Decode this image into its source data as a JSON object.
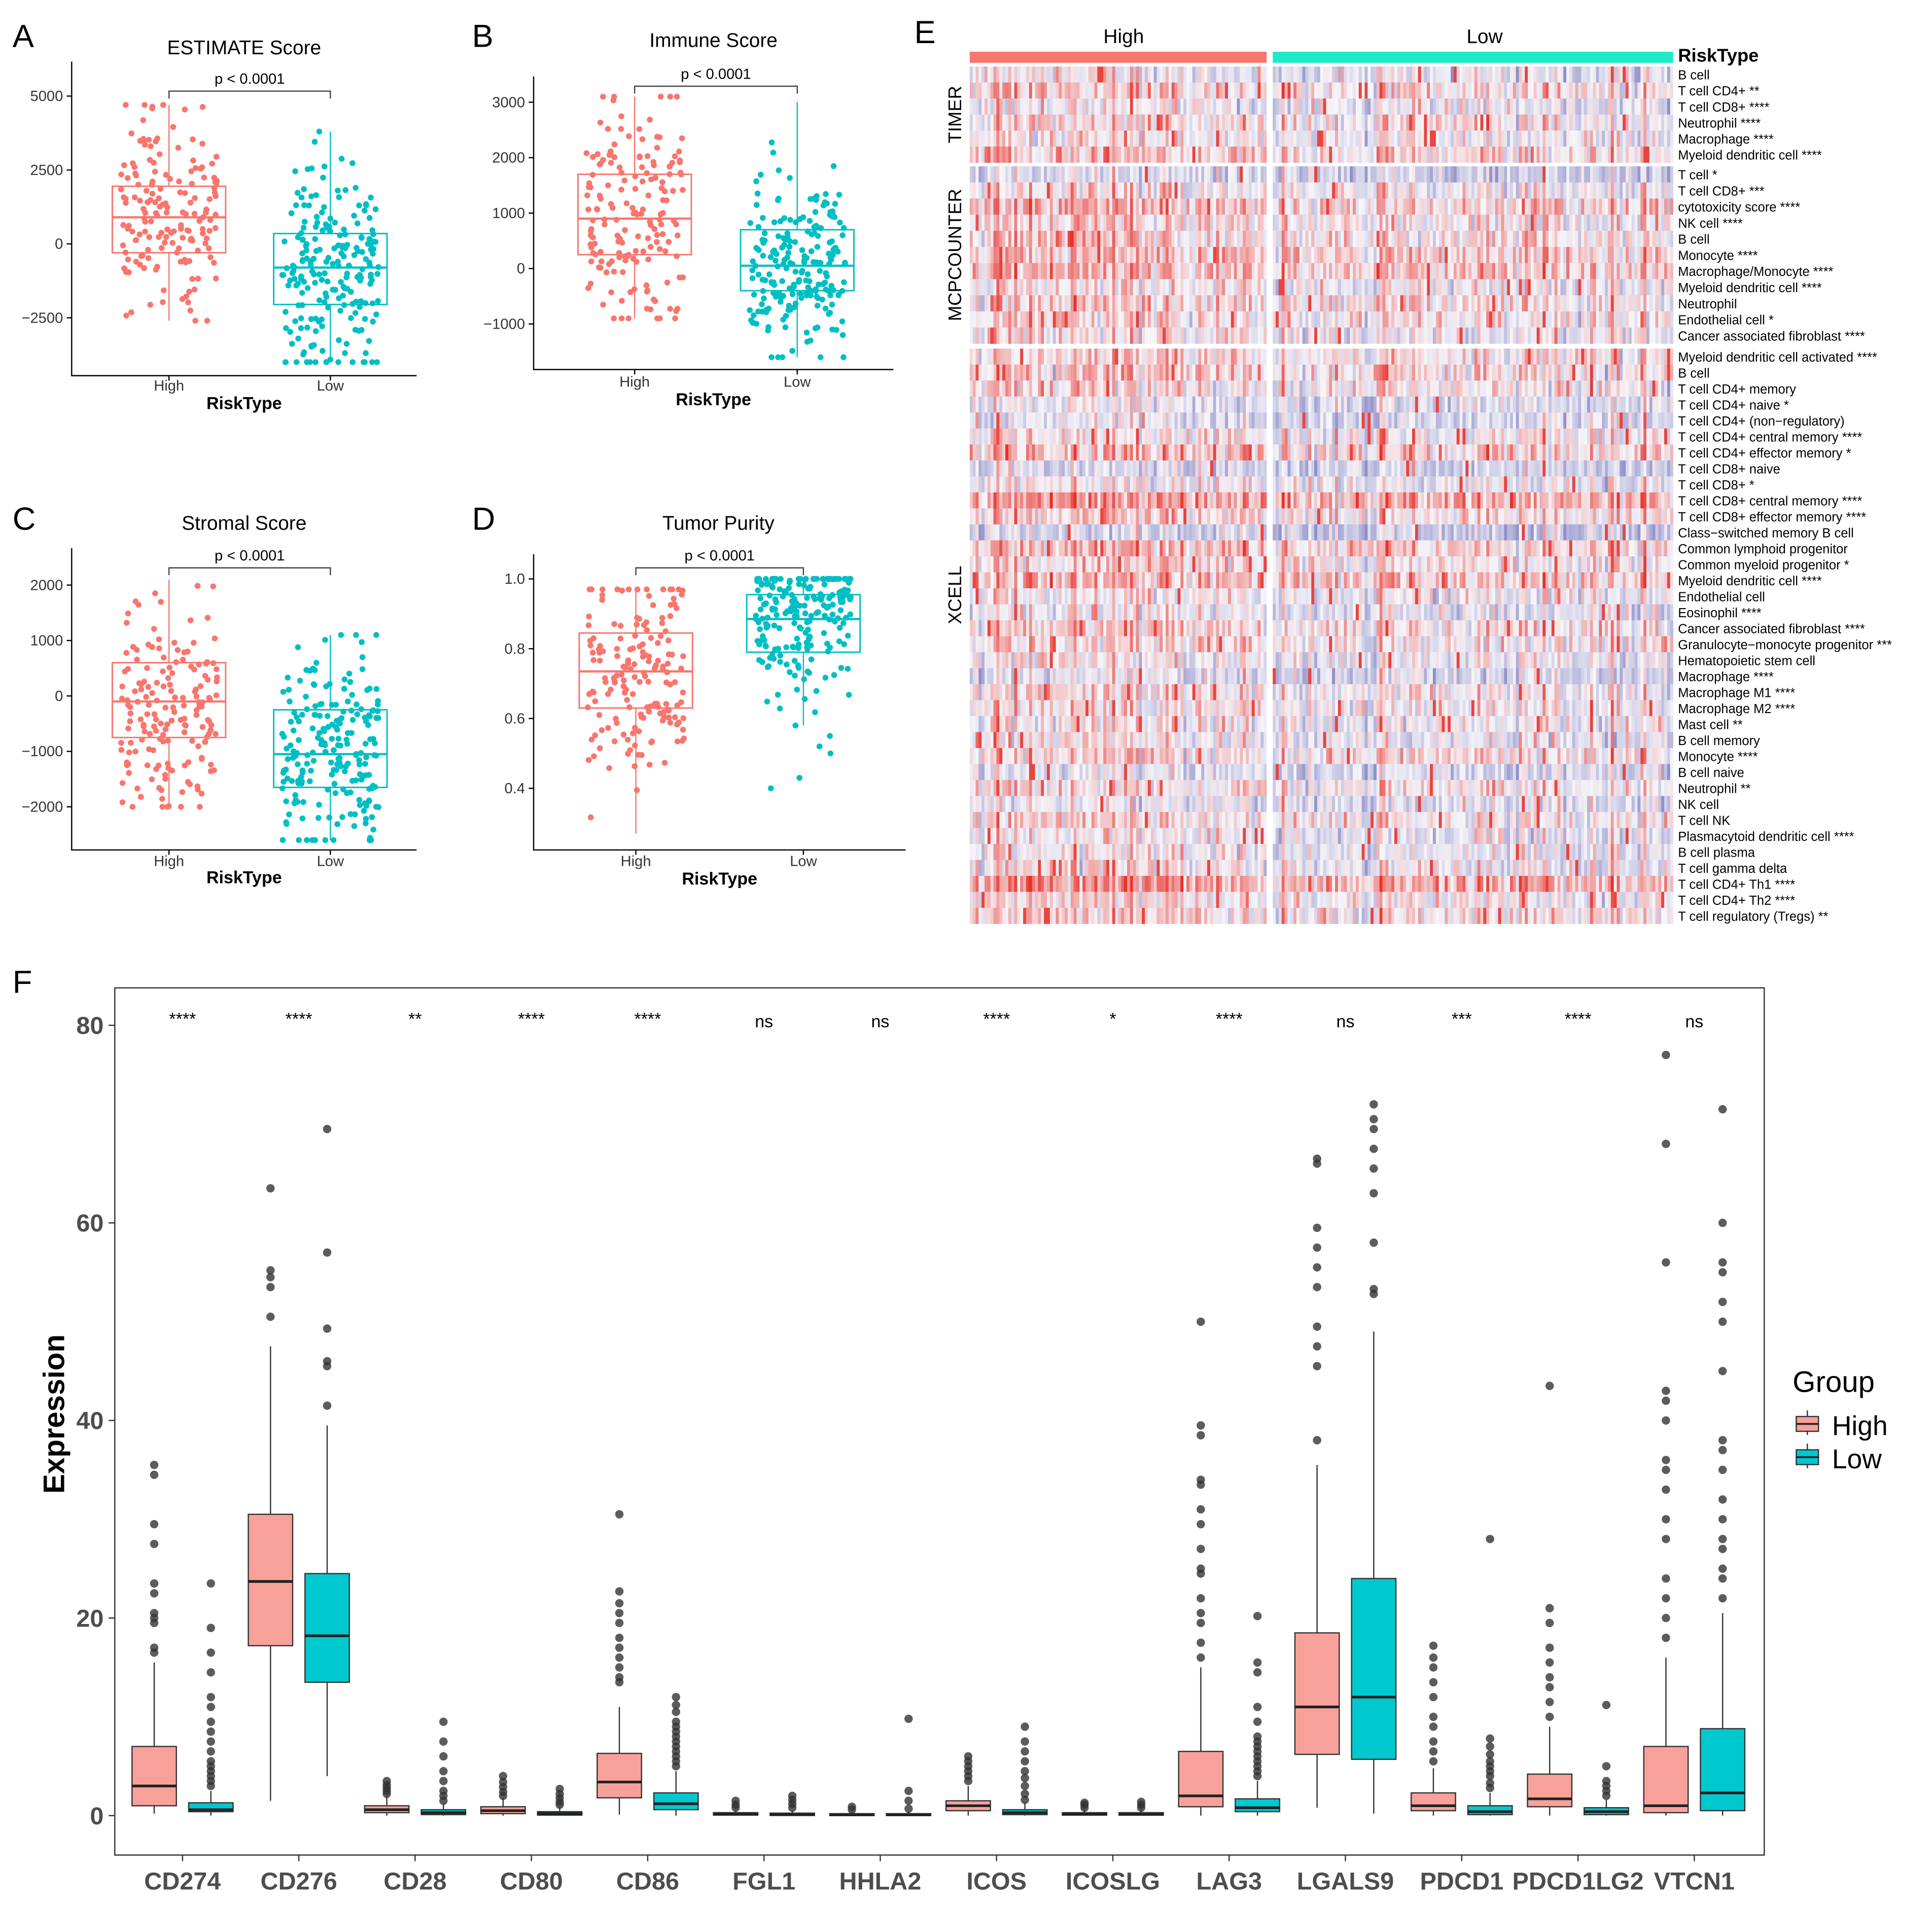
{
  "colors": {
    "high": "#F8766D",
    "low": "#00BFC4",
    "high_fill_f": "#F8A19A",
    "low_fill_f": "#00C8CF",
    "anno_low": "#1DEBC8",
    "heat_red": "#E8302A",
    "heat_blue": "#4B4BA8",
    "heat_mid": "#F6F5F9"
  },
  "chart_data": [
    {
      "panel": "A",
      "type": "box-jitter",
      "title": "ESTIMATE Score",
      "pvalue": "p < 0.0001",
      "xlabel": "RiskType",
      "categories": [
        "High",
        "Low"
      ],
      "yticks": [
        5000,
        2500,
        0,
        -2500
      ],
      "ytick_labels": [
        "5000",
        "2500",
        "0",
        "−2500"
      ],
      "boxes": [
        {
          "q1": -300,
          "median": 900,
          "q3": 1950,
          "min": -2600,
          "max": 4700,
          "n": 170
        },
        {
          "q1": -2050,
          "median": -800,
          "q3": 350,
          "min": -4000,
          "max": 3800,
          "n": 210
        }
      ]
    },
    {
      "panel": "B",
      "type": "box-jitter",
      "title": "Immune Score",
      "pvalue": "p < 0.0001",
      "xlabel": "RiskType",
      "categories": [
        "High",
        "Low"
      ],
      "yticks": [
        3000,
        2000,
        1000,
        0,
        -1000
      ],
      "ytick_labels": [
        "3000",
        "2000",
        "1000",
        "0",
        "−1000"
      ],
      "boxes": [
        {
          "q1": 250,
          "median": 900,
          "q3": 1700,
          "min": -900,
          "max": 3100,
          "n": 170
        },
        {
          "q1": -400,
          "median": 50,
          "q3": 700,
          "min": -1600,
          "max": 3000,
          "n": 210
        }
      ]
    },
    {
      "panel": "C",
      "type": "box-jitter",
      "title": "Stromal Score",
      "pvalue": "p < 0.0001",
      "xlabel": "RiskType",
      "categories": [
        "High",
        "Low"
      ],
      "yticks": [
        2000,
        1000,
        0,
        -1000,
        -2000
      ],
      "ytick_labels": [
        "2000",
        "1000",
        "0",
        "−1000",
        "−2000"
      ],
      "boxes": [
        {
          "q1": -750,
          "median": -100,
          "q3": 600,
          "min": -2000,
          "max": 2100,
          "n": 170
        },
        {
          "q1": -1650,
          "median": -1050,
          "q3": -250,
          "min": -2600,
          "max": 1100,
          "n": 210
        }
      ]
    },
    {
      "panel": "D",
      "type": "box-jitter",
      "title": "Tumor Purity",
      "pvalue": "p < 0.0001",
      "xlabel": "RiskType",
      "categories": [
        "High",
        "Low"
      ],
      "yticks": [
        1.0,
        0.8,
        0.6,
        0.4
      ],
      "ytick_labels": [
        "1.0",
        "0.8",
        "0.6",
        "0.4"
      ],
      "boxes": [
        {
          "q1": 0.63,
          "median": 0.735,
          "q3": 0.845,
          "min": 0.27,
          "max": 0.97,
          "n": 170
        },
        {
          "q1": 0.79,
          "median": 0.885,
          "q3": 0.955,
          "min": 0.58,
          "max": 1.0,
          "n": 210,
          "outliers": [
            0.4,
            0.43,
            0.5,
            0.52,
            0.55
          ]
        }
      ]
    },
    {
      "panel": "E",
      "type": "heatmap",
      "legend_title": "RiskType",
      "column_groups": [
        "High",
        "Low"
      ],
      "row_groups": [
        {
          "name": "TIMER",
          "rows": [
            "B cell",
            "T cell CD4+ **",
            "T cell CD8+ ****",
            "Neutrophil ****",
            "Macrophage ****",
            "Myeloid dendritic cell ****"
          ]
        },
        {
          "name": "MCPCOUNTER",
          "rows": [
            "T cell *",
            "T cell CD8+ ***",
            "cytotoxicity score ****",
            "NK cell ****",
            "B cell",
            "Monocyte ****",
            "Macrophage/Monocyte ****",
            "Myeloid dendritic cell ****",
            "Neutrophil",
            "Endothelial cell *",
            "Cancer associated fibroblast ****"
          ]
        },
        {
          "name": "XCELL",
          "rows": [
            "Myeloid dendritic cell activated ****",
            "B cell",
            "T cell CD4+ memory",
            "T cell CD4+ naive *",
            "T cell CD4+ (non−regulatory)",
            "T cell CD4+ central memory ****",
            "T cell CD4+ effector memory *",
            "T cell CD8+ naive",
            "T cell CD8+ *",
            "T cell CD8+ central memory ****",
            "T cell CD8+ effector memory ****",
            "Class−switched memory B cell",
            "Common lymphoid progenitor",
            "Common myeloid progenitor *",
            "Myeloid dendritic cell ****",
            "Endothelial cell",
            "Eosinophil ****",
            "Cancer associated fibroblast ****",
            "Granulocyte−monocyte progenitor ***",
            "Hematopoietic stem cell",
            "Macrophage ****",
            "Macrophage M1 ****",
            "Macrophage M2 ****",
            "Mast cell **",
            "B cell memory",
            "Monocyte ****",
            "B cell naive",
            "Neutrophil **",
            "NK cell",
            "T cell NK",
            "Plasmacytoid dendritic cell ****",
            "B cell plasma",
            "T cell gamma delta",
            "T cell CD4+ Th1 ****",
            "T cell CD4+ Th2 ****",
            "T cell regulatory (Tregs) **"
          ]
        }
      ]
    },
    {
      "panel": "F",
      "type": "grouped-box",
      "ylabel": "Expression",
      "legend_title": "Group",
      "legend": [
        "High",
        "Low"
      ],
      "yticks": [
        0,
        20,
        40,
        60,
        80
      ],
      "ylim": [
        -2,
        86
      ],
      "categories": [
        "CD274",
        "CD276",
        "CD28",
        "CD80",
        "CD86",
        "FGL1",
        "HHLA2",
        "ICOS",
        "ICOSLG",
        "LAG3",
        "LGALS9",
        "PDCD1",
        "PDCD1LG2",
        "VTCN1"
      ],
      "significance": [
        "****",
        "****",
        "**",
        "****",
        "****",
        "ns",
        "ns",
        "****",
        "*",
        "****",
        "ns",
        "***",
        "****",
        "ns"
      ],
      "high": [
        {
          "q1": 1,
          "median": 3,
          "q3": 7,
          "min": 0.2,
          "max": 15.5,
          "outliers": [
            16.5,
            17,
            19.5,
            20,
            20.5,
            22.5,
            23.5,
            27.5,
            29.5,
            34.5,
            35.5
          ]
        },
        {
          "q1": 17.2,
          "median": 23.7,
          "q3": 30.5,
          "min": 1.5,
          "max": 47.5,
          "outliers": [
            50.5,
            53.5,
            54.5,
            55.2,
            63.5
          ]
        },
        {
          "q1": 0.3,
          "median": 0.6,
          "q3": 1,
          "min": 0,
          "max": 2,
          "outliers": [
            2.2,
            2.5,
            2.8,
            3.1,
            3.5
          ]
        },
        {
          "q1": 0.2,
          "median": 0.5,
          "q3": 0.9,
          "min": 0,
          "max": 1.8,
          "outliers": [
            2,
            2.4,
            2.9,
            3.4,
            4
          ]
        },
        {
          "q1": 1.8,
          "median": 3.4,
          "q3": 6.3,
          "min": 0.1,
          "max": 11,
          "outliers": [
            13.5,
            14,
            15,
            16,
            17,
            18,
            19.5,
            20.5,
            21.5,
            22.7,
            30.5
          ]
        },
        {
          "q1": 0.05,
          "median": 0.15,
          "q3": 0.3,
          "min": 0,
          "max": 0.6,
          "outliers": [
            0.8,
            1.1,
            1.5
          ]
        },
        {
          "q1": 0.02,
          "median": 0.08,
          "q3": 0.2,
          "min": 0,
          "max": 0.4,
          "outliers": [
            0.6,
            0.9
          ]
        },
        {
          "q1": 0.5,
          "median": 1,
          "q3": 1.5,
          "min": 0,
          "max": 3,
          "outliers": [
            3.5,
            4,
            4.5,
            5,
            5.5,
            6
          ]
        },
        {
          "q1": 0.05,
          "median": 0.15,
          "q3": 0.3,
          "min": 0,
          "max": 0.6,
          "outliers": [
            0.8,
            1.1,
            1.3
          ]
        },
        {
          "q1": 0.9,
          "median": 2,
          "q3": 6.5,
          "min": 0,
          "max": 15,
          "outliers": [
            16,
            17.5,
            19.5,
            20.5,
            22,
            24.5,
            25,
            27,
            29.5,
            31,
            33.5,
            34,
            38.5,
            39.5,
            50
          ]
        },
        {
          "q1": 6.2,
          "median": 11,
          "q3": 18.5,
          "min": 0.8,
          "max": 35.5,
          "outliers": [
            38,
            45.5,
            47.5,
            49.5,
            53.5,
            55.5,
            57.5,
            59.5,
            66,
            66.5
          ]
        },
        {
          "q1": 0.5,
          "median": 1,
          "q3": 2.3,
          "min": 0,
          "max": 4.8,
          "outliers": [
            5.5,
            6.5,
            7.5,
            9,
            10,
            12,
            13.5,
            15,
            16,
            17.2
          ]
        },
        {
          "q1": 0.9,
          "median": 1.7,
          "q3": 4.2,
          "min": 0,
          "max": 9,
          "outliers": [
            10,
            11.5,
            13,
            14,
            15.5,
            17,
            19.5,
            21,
            43.5
          ]
        },
        {
          "q1": 0.3,
          "median": 1,
          "q3": 7,
          "min": 0,
          "max": 16,
          "outliers": [
            18,
            20,
            22,
            24,
            28,
            30,
            33,
            35,
            36,
            40,
            42,
            43,
            56,
            68,
            77
          ]
        }
      ],
      "low": [
        {
          "q1": 0.4,
          "median": 0.6,
          "q3": 1.3,
          "min": 0,
          "max": 2.5,
          "outliers": [
            3,
            3.5,
            4,
            4.5,
            5,
            5.5,
            6.5,
            7.5,
            8.5,
            9.5,
            11,
            12,
            14.5,
            16.5,
            19,
            23.5
          ]
        },
        {
          "q1": 13.5,
          "median": 18.2,
          "q3": 24.5,
          "min": 4,
          "max": 39.5,
          "outliers": [
            41.5,
            45.5,
            46,
            49.3,
            57,
            69.5
          ]
        },
        {
          "q1": 0.1,
          "median": 0.3,
          "q3": 0.6,
          "min": 0,
          "max": 1.2,
          "outliers": [
            1.5,
            2,
            2.5,
            3.5,
            4.5,
            6,
            7.5,
            9.5
          ]
        },
        {
          "q1": 0.05,
          "median": 0.2,
          "q3": 0.4,
          "min": 0,
          "max": 0.9,
          "outliers": [
            1.1,
            1.4,
            1.8,
            2.2,
            2.7
          ]
        },
        {
          "q1": 0.6,
          "median": 1.2,
          "q3": 2.3,
          "min": 0,
          "max": 4.5,
          "outliers": [
            5,
            5.5,
            6,
            6.5,
            7,
            7.5,
            8,
            8.5,
            9,
            9.5,
            10.5,
            11.2,
            12
          ]
        },
        {
          "q1": 0.02,
          "median": 0.1,
          "q3": 0.25,
          "min": 0,
          "max": 0.5,
          "outliers": [
            0.8,
            1.2,
            1.6,
            2
          ]
        },
        {
          "q1": 0.02,
          "median": 0.08,
          "q3": 0.2,
          "min": 0,
          "max": 0.4,
          "outliers": [
            0.7,
            1.5,
            2.5,
            9.8
          ]
        },
        {
          "q1": 0.1,
          "median": 0.3,
          "q3": 0.6,
          "min": 0,
          "max": 1.3,
          "outliers": [
            1.6,
            2.2,
            3,
            3.8,
            4.5,
            5.5,
            6.5,
            7.5,
            9
          ]
        },
        {
          "q1": 0.05,
          "median": 0.12,
          "q3": 0.3,
          "min": 0,
          "max": 0.6,
          "outliers": [
            0.8,
            1.1,
            1.4
          ]
        },
        {
          "q1": 0.4,
          "median": 0.8,
          "q3": 1.7,
          "min": 0,
          "max": 3.5,
          "outliers": [
            4,
            4.5,
            5,
            5.5,
            6,
            6.5,
            7,
            7.5,
            8,
            9.5,
            11,
            14.5,
            15.5,
            20.2
          ]
        },
        {
          "q1": 5.7,
          "median": 12,
          "q3": 24,
          "min": 0.2,
          "max": 49,
          "outliers": [
            52.8,
            53.3,
            58,
            63,
            65.5,
            67.5,
            69.5,
            70.5,
            72
          ]
        },
        {
          "q1": 0.1,
          "median": 0.4,
          "q3": 1,
          "min": 0,
          "max": 2.3,
          "outliers": [
            2.8,
            3.3,
            4,
            4.5,
            5,
            5.5,
            6.2,
            7,
            7.8,
            28
          ]
        },
        {
          "q1": 0.1,
          "median": 0.4,
          "q3": 0.8,
          "min": 0,
          "max": 1.6,
          "outliers": [
            2,
            2.5,
            3,
            3.5,
            5,
            11.2
          ]
        },
        {
          "q1": 0.5,
          "median": 2.3,
          "q3": 8.8,
          "min": 0,
          "max": 20.5,
          "outliers": [
            22,
            24,
            25,
            27,
            28,
            30,
            32,
            35,
            37,
            38,
            45,
            50,
            52,
            55,
            56,
            60,
            71.5
          ]
        }
      ]
    }
  ]
}
